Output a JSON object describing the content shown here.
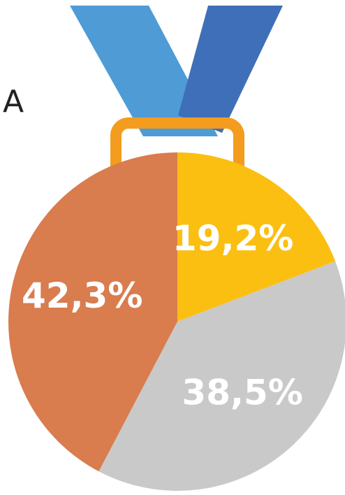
{
  "chart_data": {
    "type": "pie",
    "annotation": "A",
    "values": [
      19.2,
      38.5,
      42.3
    ],
    "value_labels": [
      "19,2%",
      "38,5%",
      "42,3%"
    ],
    "colors": [
      "#fbbf12",
      "#c9c9c9",
      "#d97c4e"
    ]
  }
}
